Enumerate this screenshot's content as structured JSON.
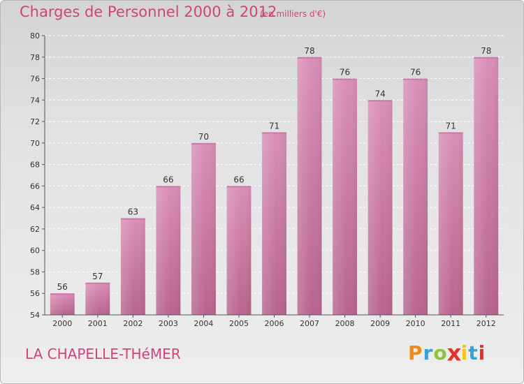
{
  "title": "Charges de Personnel 2000 à 2012",
  "subtitle": "(en milliers d'€)",
  "commune": "LA CHAPELLE-THéMER",
  "logo": {
    "letters": [
      "P",
      "r",
      "o",
      "x",
      "i",
      "t",
      "i"
    ],
    "colors": [
      "#f08a1a",
      "#3aa0d8",
      "#8cc63f",
      "#e5332a",
      "#f7c21b",
      "#3aa0d8",
      "#e5332a"
    ]
  },
  "colors": {
    "bar": "#d98fb8",
    "bar_dark": "#b7648f",
    "accent": "#d1437a"
  },
  "chart_data": {
    "type": "bar",
    "title": "Charges de Personnel 2000 à 2012",
    "subtitle": "(en milliers d'€)",
    "categories": [
      "2000",
      "2001",
      "2002",
      "2003",
      "2004",
      "2005",
      "2006",
      "2007",
      "2008",
      "2009",
      "2010",
      "2011",
      "2012"
    ],
    "values": [
      56,
      57,
      63,
      66,
      70,
      66,
      71,
      78,
      76,
      74,
      76,
      71,
      78
    ],
    "ylim": [
      54,
      80
    ],
    "yticks": [
      54,
      56,
      58,
      60,
      62,
      64,
      66,
      68,
      70,
      72,
      74,
      76,
      78,
      80
    ],
    "grid": true,
    "xlabel": "",
    "ylabel": ""
  }
}
